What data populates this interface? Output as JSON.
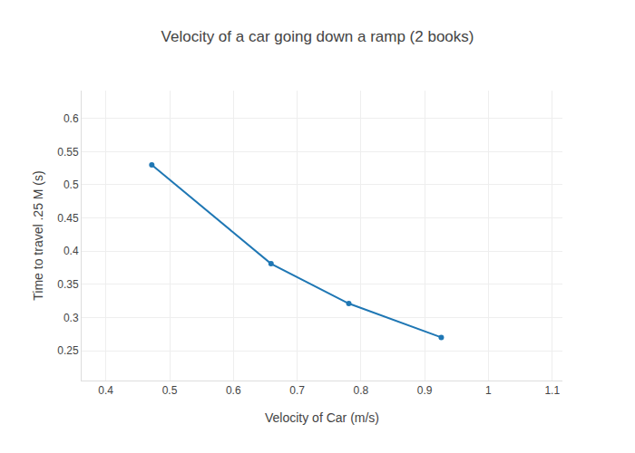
{
  "chart_data": {
    "type": "line",
    "title": "Velocity of a car going down a ramp (2 books)",
    "x_label": "Velocity of Car (m/s)",
    "y_label": "Time to travel .25 M (s)",
    "x": [
      0.472,
      0.659,
      0.781,
      0.926
    ],
    "values": [
      0.53,
      0.381,
      0.321,
      0.27
    ],
    "color": "#1f77b4",
    "marker": "circle",
    "xlim": [
      0.362,
      1.116
    ],
    "ylim": [
      0.205,
      0.642
    ],
    "xticks": [
      0.4,
      0.5,
      0.6,
      0.7,
      0.8,
      0.9,
      1,
      1.1
    ],
    "yticks": [
      0.25,
      0.3,
      0.35,
      0.4,
      0.45,
      0.5,
      0.55,
      0.6
    ],
    "grid": true
  }
}
